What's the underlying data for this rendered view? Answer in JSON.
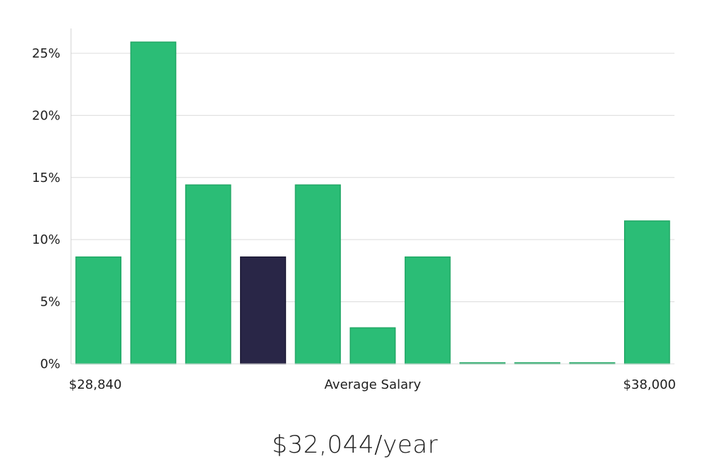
{
  "chart_data": {
    "type": "bar",
    "title": "",
    "xlabel": "Average Salary",
    "ylabel": "",
    "x_range_labels": {
      "min": "$28,840",
      "max": "$38,000"
    },
    "ylim": [
      0,
      27
    ],
    "y_ticks": [
      0,
      5,
      10,
      15,
      20,
      25
    ],
    "y_tick_suffix": "%",
    "grid": true,
    "legend": "none",
    "values": [
      8.6,
      25.9,
      14.4,
      8.6,
      14.4,
      2.9,
      8.6,
      0,
      0,
      0,
      11.5
    ],
    "highlight_index": 3,
    "colors": {
      "bar": "#2bbd76",
      "bar_edge": "#22a866",
      "highlight": "#292647",
      "grid": "#dcdcdc",
      "axis": "#d0d0d0"
    }
  },
  "summary": {
    "salary_text": "$32,044/year"
  }
}
